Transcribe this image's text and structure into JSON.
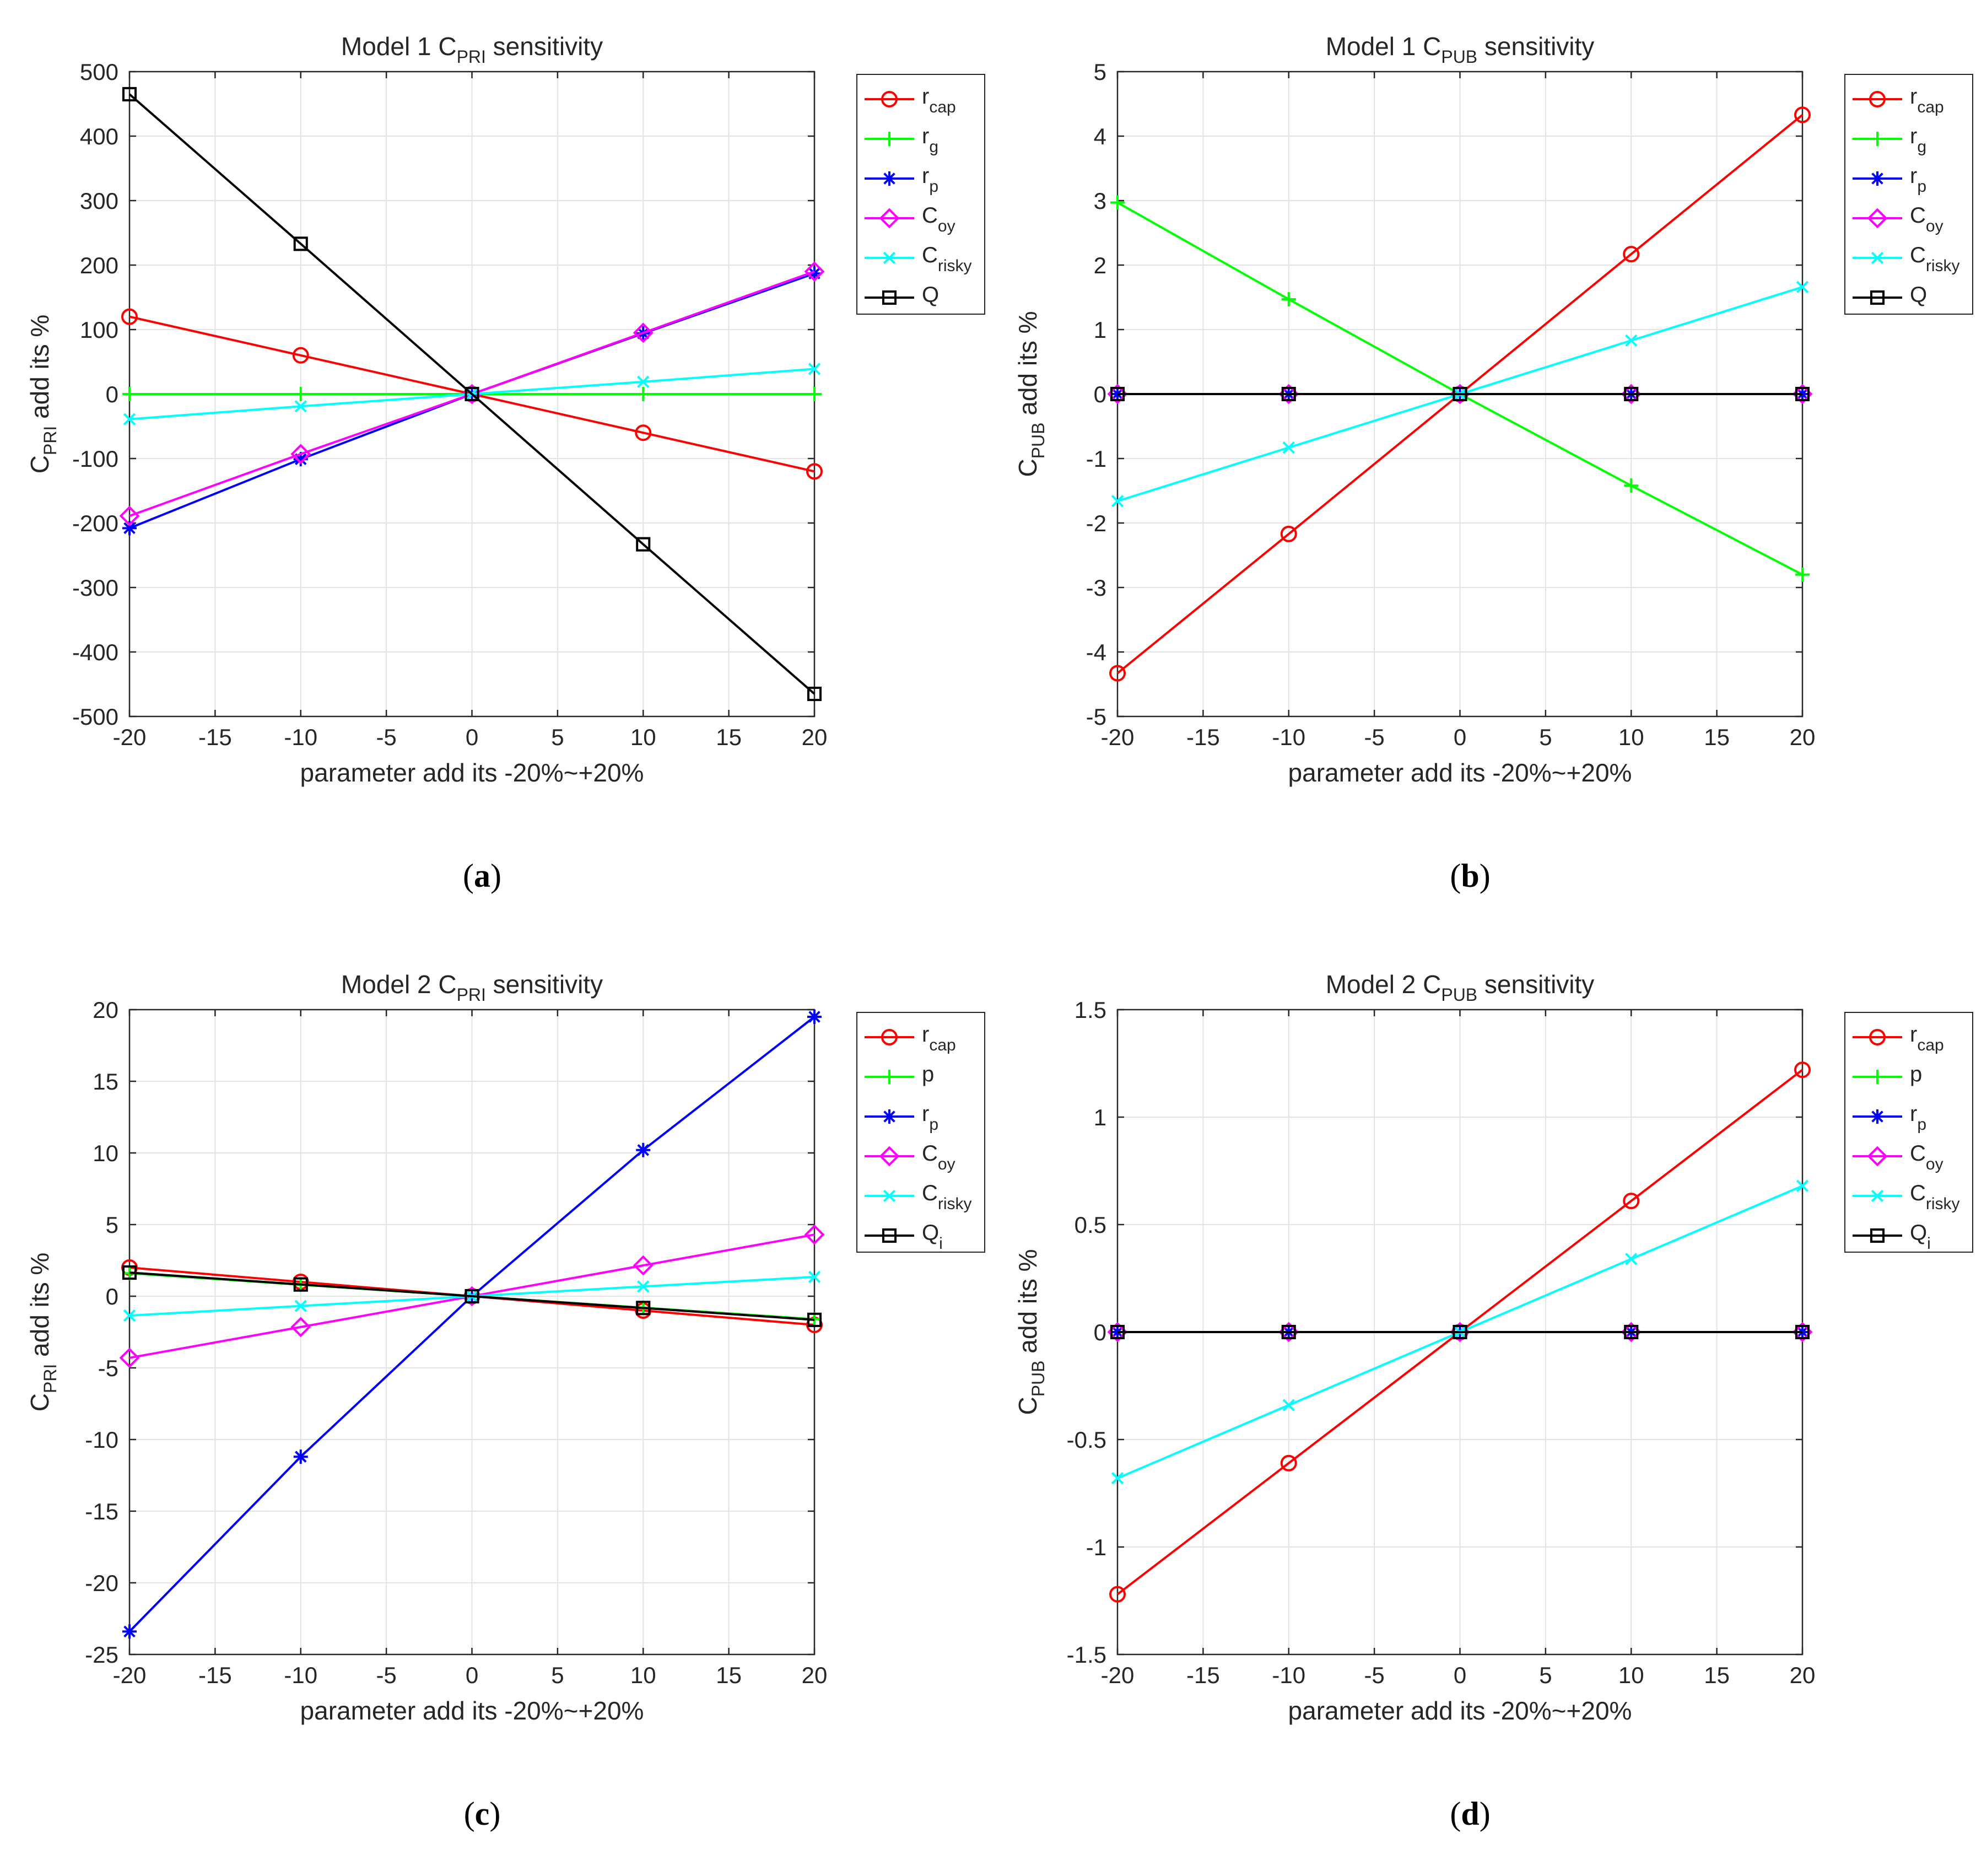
{
  "chart_data": [
    {
      "type": "line",
      "panel": "a",
      "caption_letter": "a",
      "title": {
        "prefix": "Model 1 C",
        "sub": "PRI",
        "suffix": " sensitivity"
      },
      "xlabel": "parameter add its -20%~+20%",
      "ylabel": {
        "prefix": "C",
        "sub": "PRI",
        "suffix": " add its %"
      },
      "x": [
        -20,
        -10,
        0,
        10,
        20
      ],
      "xlim": [
        -20,
        20
      ],
      "xticks": [
        -20,
        -15,
        -10,
        -5,
        0,
        5,
        10,
        15,
        20
      ],
      "xtick_labels": [
        "-20",
        "-15",
        "-10",
        "-5",
        "0",
        "5",
        "10",
        "15",
        "20"
      ],
      "ylim": [
        -500,
        500
      ],
      "yticks": [
        -500,
        -400,
        -300,
        -200,
        -100,
        0,
        100,
        200,
        300,
        400,
        500
      ],
      "ytick_labels": [
        "-500",
        "-400",
        "-300",
        "-200",
        "-100",
        "0",
        "100",
        "200",
        "300",
        "400",
        "500"
      ],
      "grid": true,
      "legend_position": "outside-right-top",
      "series": [
        {
          "name": "r",
          "sub": "cap",
          "color": "#ff0000",
          "marker": "circle",
          "values": [
            120,
            60,
            0,
            -60,
            -120
          ]
        },
        {
          "name": "r",
          "sub": "g",
          "color": "#00ff00",
          "marker": "plus",
          "values": [
            0,
            0,
            0,
            0,
            0
          ]
        },
        {
          "name": "r",
          "sub": "p",
          "color": "#0000ff",
          "marker": "star",
          "values": [
            -208,
            -101,
            0,
            94,
            187
          ]
        },
        {
          "name": "C",
          "sub": "oy",
          "color": "#ff00ff",
          "marker": "diamond",
          "values": [
            -189,
            -93,
            0,
            95,
            190
          ]
        },
        {
          "name": "C",
          "sub": "risky",
          "color": "#00ffff",
          "marker": "x",
          "values": [
            -39,
            -19,
            0,
            19,
            39
          ]
        },
        {
          "name": "Q",
          "sub": "",
          "color": "#000000",
          "marker": "square",
          "values": [
            465,
            233,
            0,
            -233,
            -465
          ]
        }
      ]
    },
    {
      "type": "line",
      "panel": "b",
      "caption_letter": "b",
      "title": {
        "prefix": "Model 1 C",
        "sub": "PUB",
        "suffix": " sensitivity"
      },
      "xlabel": "parameter add its -20%~+20%",
      "ylabel": {
        "prefix": "C",
        "sub": "PUB",
        "suffix": " add its %"
      },
      "x": [
        -20,
        -10,
        0,
        10,
        20
      ],
      "xlim": [
        -20,
        20
      ],
      "xticks": [
        -20,
        -15,
        -10,
        -5,
        0,
        5,
        10,
        15,
        20
      ],
      "xtick_labels": [
        "-20",
        "-15",
        "-10",
        "-5",
        "0",
        "5",
        "10",
        "15",
        "20"
      ],
      "ylim": [
        -5,
        5
      ],
      "yticks": [
        -5,
        -4,
        -3,
        -2,
        -1,
        0,
        1,
        2,
        3,
        4,
        5
      ],
      "ytick_labels": [
        "-5",
        "-4",
        "-3",
        "-2",
        "-1",
        "0",
        "1",
        "2",
        "3",
        "4",
        "5"
      ],
      "grid": true,
      "legend_position": "outside-right-top",
      "series": [
        {
          "name": "r",
          "sub": "cap",
          "color": "#ff0000",
          "marker": "circle",
          "values": [
            -4.33,
            -2.17,
            0,
            2.17,
            4.33
          ]
        },
        {
          "name": "r",
          "sub": "g",
          "color": "#00ff00",
          "marker": "plus",
          "values": [
            2.97,
            1.47,
            0,
            -1.42,
            -2.8
          ]
        },
        {
          "name": "r",
          "sub": "p",
          "color": "#0000ff",
          "marker": "star",
          "values": [
            0,
            0,
            0,
            0,
            0
          ]
        },
        {
          "name": "C",
          "sub": "oy",
          "color": "#ff00ff",
          "marker": "diamond",
          "values": [
            0,
            0,
            0,
            0,
            0
          ]
        },
        {
          "name": "C",
          "sub": "risky",
          "color": "#00ffff",
          "marker": "x",
          "values": [
            -1.66,
            -0.83,
            0,
            0.83,
            1.66
          ]
        },
        {
          "name": "Q",
          "sub": "",
          "color": "#000000",
          "marker": "square",
          "values": [
            0,
            0,
            0,
            0,
            0
          ]
        }
      ]
    },
    {
      "type": "line",
      "panel": "c",
      "caption_letter": "c",
      "title": {
        "prefix": "Model 2 C",
        "sub": "PRI",
        "suffix": " sensitivity"
      },
      "xlabel": "parameter add its -20%~+20%",
      "ylabel": {
        "prefix": "C",
        "sub": "PRI",
        "suffix": " add its %"
      },
      "x": [
        -20,
        -10,
        0,
        10,
        20
      ],
      "xlim": [
        -20,
        20
      ],
      "xticks": [
        -20,
        -15,
        -10,
        -5,
        0,
        5,
        10,
        15,
        20
      ],
      "xtick_labels": [
        "-20",
        "-15",
        "-10",
        "-5",
        "0",
        "5",
        "10",
        "15",
        "20"
      ],
      "ylim": [
        -25,
        20
      ],
      "yticks": [
        -25,
        -20,
        -15,
        -10,
        -5,
        0,
        5,
        10,
        15,
        20
      ],
      "ytick_labels": [
        "-25",
        "-20",
        "-15",
        "-10",
        "-5",
        "0",
        "5",
        "10",
        "15",
        "20"
      ],
      "grid": true,
      "legend_position": "outside-right-top",
      "series": [
        {
          "name": "r",
          "sub": "cap",
          "color": "#ff0000",
          "marker": "circle",
          "values": [
            2.0,
            1.0,
            0,
            -1.0,
            -2.0
          ]
        },
        {
          "name": "p",
          "sub": "",
          "color": "#00ff00",
          "marker": "plus",
          "values": [
            1.6,
            0.8,
            0,
            -0.8,
            -1.6
          ]
        },
        {
          "name": "r",
          "sub": "p",
          "color": "#0000ff",
          "marker": "star",
          "values": [
            -23.4,
            -11.2,
            0,
            10.2,
            19.5
          ]
        },
        {
          "name": "C",
          "sub": "oy",
          "color": "#ff00ff",
          "marker": "diamond",
          "values": [
            -4.3,
            -2.15,
            0,
            2.15,
            4.3
          ]
        },
        {
          "name": "C",
          "sub": "risky",
          "color": "#00ffff",
          "marker": "x",
          "values": [
            -1.35,
            -0.68,
            0,
            0.68,
            1.35
          ]
        },
        {
          "name": "Q",
          "sub": "i",
          "color": "#000000",
          "marker": "square",
          "values": [
            1.65,
            0.82,
            0,
            -0.82,
            -1.65
          ]
        }
      ]
    },
    {
      "type": "line",
      "panel": "d",
      "caption_letter": "d",
      "title": {
        "prefix": "Model 2 C",
        "sub": "PUB",
        "suffix": " sensitivity"
      },
      "xlabel": "parameter add its -20%~+20%",
      "ylabel": {
        "prefix": "C",
        "sub": "PUB",
        "suffix": " add its %"
      },
      "x": [
        -20,
        -10,
        0,
        10,
        20
      ],
      "xlim": [
        -20,
        20
      ],
      "xticks": [
        -20,
        -15,
        -10,
        -5,
        0,
        5,
        10,
        15,
        20
      ],
      "xtick_labels": [
        "-20",
        "-15",
        "-10",
        "-5",
        "0",
        "5",
        "10",
        "15",
        "20"
      ],
      "ylim": [
        -1.5,
        1.5
      ],
      "yticks": [
        -1.5,
        -1,
        -0.5,
        0,
        0.5,
        1,
        1.5
      ],
      "ytick_labels": [
        "-1.5",
        "-1",
        "-0.5",
        "0",
        "0.5",
        "1",
        "1.5"
      ],
      "grid": true,
      "legend_position": "outside-right-top",
      "series": [
        {
          "name": "r",
          "sub": "cap",
          "color": "#ff0000",
          "marker": "circle",
          "values": [
            -1.22,
            -0.61,
            0,
            0.61,
            1.22
          ]
        },
        {
          "name": "p",
          "sub": "",
          "color": "#00ff00",
          "marker": "plus",
          "values": [
            0,
            0,
            0,
            0,
            0
          ]
        },
        {
          "name": "r",
          "sub": "p",
          "color": "#0000ff",
          "marker": "star",
          "values": [
            0,
            0,
            0,
            0,
            0
          ]
        },
        {
          "name": "C",
          "sub": "oy",
          "color": "#ff00ff",
          "marker": "diamond",
          "values": [
            0,
            0,
            0,
            0,
            0
          ]
        },
        {
          "name": "C",
          "sub": "risky",
          "color": "#00ffff",
          "marker": "x",
          "values": [
            -0.68,
            -0.34,
            0,
            0.34,
            0.68
          ]
        },
        {
          "name": "Q",
          "sub": "i",
          "color": "#000000",
          "marker": "square",
          "values": [
            0,
            0,
            0,
            0,
            0
          ]
        }
      ]
    }
  ]
}
